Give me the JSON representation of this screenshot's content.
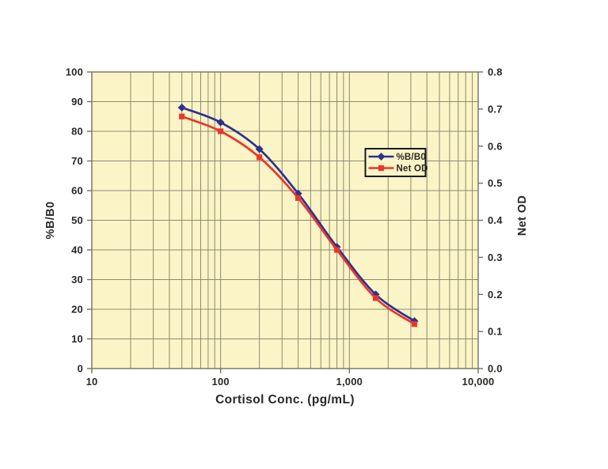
{
  "figure": {
    "background": "#ffffff",
    "plot_background": "#fbf4c6",
    "grid_color": "#8b8b6e",
    "spine_color": "#73735e",
    "text_color": "#2b2826",
    "legend_border_color": "#1a1a1a"
  },
  "chart_data": {
    "type": "line",
    "title": "",
    "xlabel": "Cortisol Conc. (pg/mL)",
    "x_scale": "log",
    "xlim": [
      10,
      10000
    ],
    "x_tick_labels": [
      {
        "value": 10,
        "label": "10"
      },
      {
        "value": 100,
        "label": "100"
      },
      {
        "value": 1000,
        "label": "1,000"
      },
      {
        "value": 10000,
        "label": "10,000"
      }
    ],
    "x": [
      50,
      100,
      200,
      400,
      800,
      1600,
      3200
    ],
    "series": [
      {
        "name": "%B/B0",
        "axis": "left",
        "color": "#2e3192",
        "marker": "diamond",
        "values": [
          88,
          83,
          74,
          59,
          41,
          25,
          16
        ]
      },
      {
        "name": "Net OD",
        "axis": "right",
        "color": "#e8382b",
        "marker": "square",
        "values": [
          0.68,
          0.64,
          0.57,
          0.46,
          0.32,
          0.19,
          0.12
        ]
      }
    ],
    "left_axis": {
      "label": "%B/B0",
      "min": 0,
      "max": 100,
      "step": 10,
      "tick_labels": [
        "0",
        "10",
        "20",
        "30",
        "40",
        "50",
        "60",
        "70",
        "80",
        "90",
        "100"
      ]
    },
    "right_axis": {
      "label": "Net OD",
      "min": 0,
      "max": 0.8,
      "step": 0.1,
      "tick_labels": [
        "0.0",
        "0.1",
        "0.2",
        "0.3",
        "0.4",
        "0.5",
        "0.6",
        "0.7",
        "0.8"
      ]
    },
    "legend": {
      "position": "inside-upper-right",
      "entries": [
        "%B/B0",
        "Net OD"
      ]
    },
    "grid": {
      "horizontal": "major",
      "vertical": "log-decades-and-minors"
    }
  }
}
